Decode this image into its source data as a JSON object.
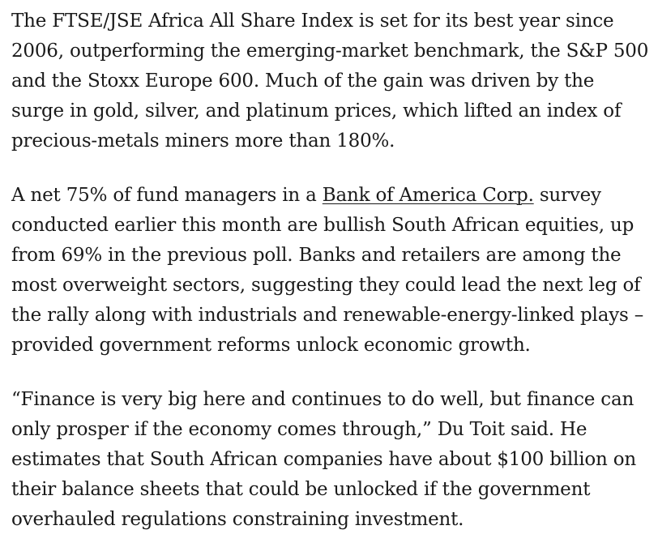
{
  "article": {
    "paragraphs": [
      {
        "text": "The FTSE/JSE Africa All Share Index is set for its best year since 2006, outperforming the emerging-market benchmark, the S&P 500 and the Stoxx Europe 600. Much of the gain was driven by the surge in gold, silver, and platinum prices, which lifted an index of precious-metals miners more than 180%."
      },
      {
        "before_link": "A net 75% of fund managers in a ",
        "link": "Bank of America Corp.",
        "after_link": " survey conducted earlier this month are bullish South African equities, up from 69% in the previous poll. Banks and retailers are among the most overweight sectors, suggesting they could lead the next leg of the rally along with industrials and renewable-energy-linked plays – provided government reforms unlock economic growth."
      },
      {
        "text": "“Finance is very big here and continues to do well, but finance can only prosper if the economy comes through,” Du Toit said. He estimates that South African companies have about $100 billion on their balance sheets that could be unlocked if the government overhauled regulations constraining investment."
      }
    ]
  }
}
